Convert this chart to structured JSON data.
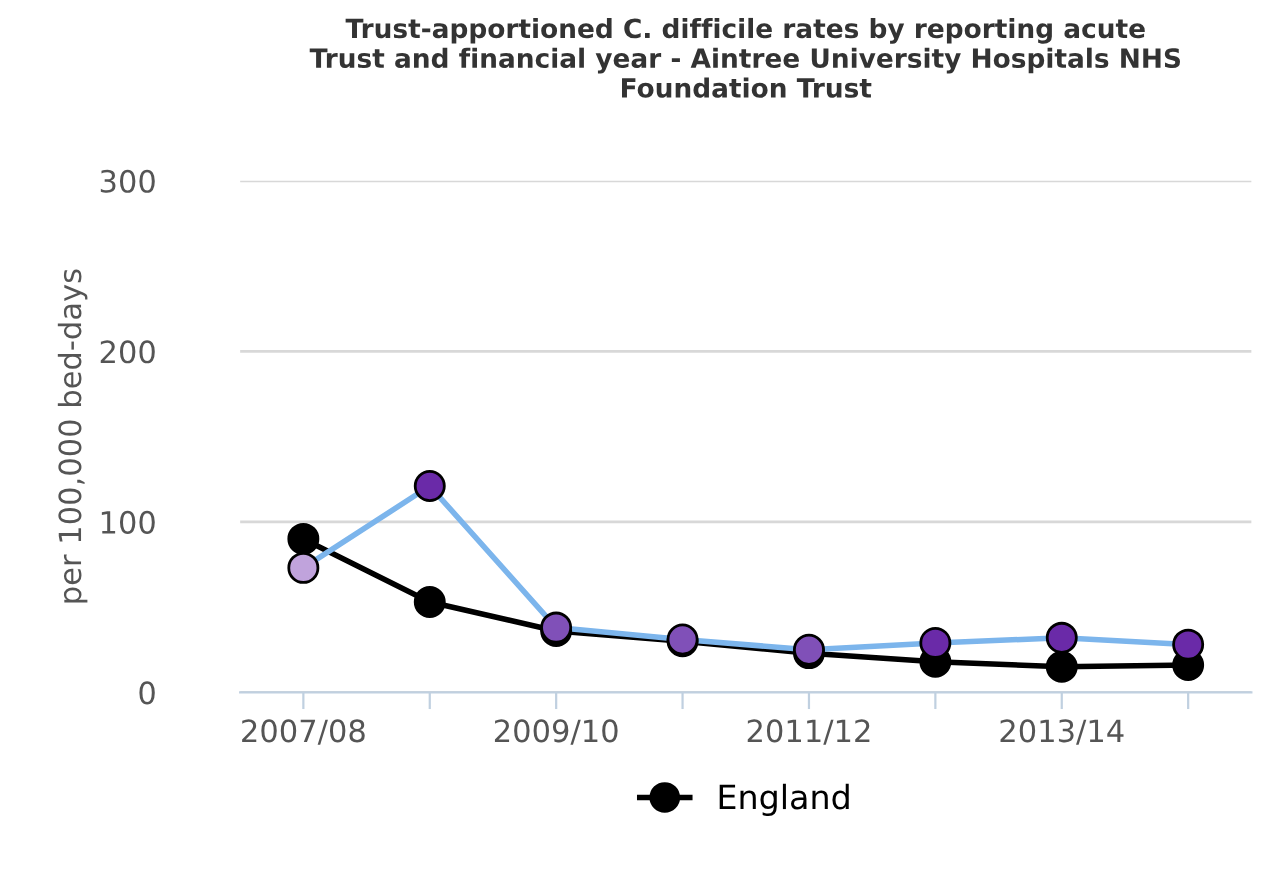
{
  "chart_data": {
    "type": "line",
    "title": "Trust-apportioned C. difficile rates by reporting acute\nTrust and financial year - Aintree University Hospitals NHS\nFoundation Trust",
    "ylabel": "per 100,000 bed-days",
    "categories": [
      "2007/08",
      null,
      "2009/10",
      null,
      "2011/12",
      null,
      "2013/14",
      null
    ],
    "series": [
      {
        "color": "#7cb5ec",
        "colors": [
          "#c0a3dc",
          "#6a2aa8",
          "#8050b8",
          "#8050b8",
          "#8050b8",
          "#6a2aa8",
          "#6a2aa8",
          "#6a2aa8"
        ],
        "values": [
          73,
          121,
          38,
          31,
          25,
          29,
          32,
          28
        ]
      },
      {
        "name": "England",
        "color": "#000000",
        "values": [
          90,
          53,
          36,
          30,
          23,
          18,
          15,
          16
        ]
      }
    ],
    "ylim": [
      0,
      300
    ],
    "yticks": [
      0,
      100,
      200,
      300
    ],
    "grid": "y",
    "legend": "bottom",
    "marker": "circle",
    "line_style": "solid"
  }
}
